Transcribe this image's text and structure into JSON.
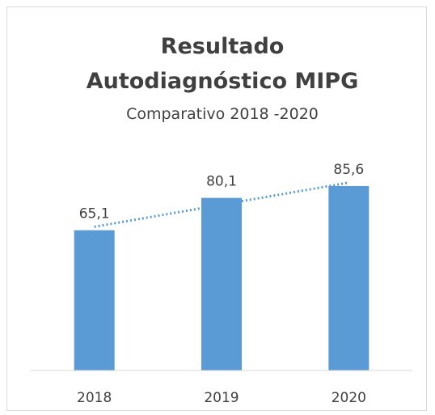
{
  "chart_data": {
    "type": "bar",
    "title": "Resultado Autodiagnóstico MIPG",
    "subtitle": "Comparativo 2018 -2020",
    "categories": [
      "2018",
      "2019",
      "2020"
    ],
    "values": [
      65.1,
      80.1,
      85.6
    ],
    "value_labels": [
      "65,1",
      "80,1",
      "85,6"
    ],
    "color": "#5b9bd5",
    "ylim": [
      0,
      100
    ],
    "trendline": "linear",
    "trendline_color": "#5b9bd5"
  }
}
